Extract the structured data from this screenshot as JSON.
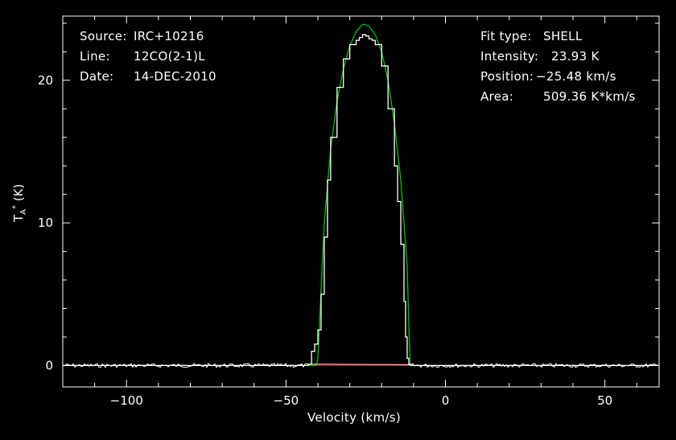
{
  "header_left": {
    "source_label": "Source:",
    "source_value": "IRC+10216",
    "line_label": "Line:",
    "line_value": "12CO(2-1)L",
    "date_label": "Date:",
    "date_value": "14-DEC-2010"
  },
  "header_right": {
    "fit_label": "Fit type:",
    "fit_value": "SHELL",
    "intensity_label": "Intensity:",
    "intensity_value": "23.93 K",
    "position_label": "Position:",
    "position_value": "−25.48 km/s",
    "area_label": "Area:",
    "area_value": "509.36 K*km/s"
  },
  "colors": {
    "background": "#000000",
    "axes": "#ffffff",
    "observed": "#ffffff",
    "fit": "#00c000",
    "baseline": "#c00000"
  },
  "chart_data": {
    "type": "line",
    "xlabel": "Velocity (km/s)",
    "ylabel_main": "T",
    "ylabel_sub": "A",
    "ylabel_sup": "*",
    "ylabel_unit": "(K)",
    "xlim": [
      -120,
      67
    ],
    "ylim": [
      -1.5,
      24.5
    ],
    "xticks": [
      -100,
      -50,
      0,
      50
    ],
    "xtick_labels": [
      "−100",
      "−50",
      "0",
      "50"
    ],
    "yticks": [
      0,
      10,
      20
    ],
    "ytick_labels": [
      "0",
      "10",
      "20"
    ],
    "series": [
      {
        "role": "observed",
        "x": [
          -120,
          -60,
          -50,
          -45,
          -43,
          -42,
          -41,
          -40,
          -39,
          -38,
          -37,
          -36,
          -34,
          -32,
          -30,
          -28,
          -27,
          -26,
          -25,
          -24,
          -23,
          -22,
          -20,
          -18,
          -16,
          -15,
          -14,
          -13,
          -12.5,
          -12,
          -11.5,
          -11,
          -5,
          0,
          67
        ],
        "y": [
          0,
          0,
          0,
          0,
          0.1,
          1.0,
          1.5,
          2.5,
          5.0,
          9.0,
          13.0,
          16.0,
          19.5,
          21.5,
          22.5,
          22.8,
          23.0,
          23.2,
          23.1,
          22.9,
          22.8,
          22.5,
          21.0,
          18.0,
          14.0,
          11.5,
          8.5,
          4.5,
          2.0,
          0.5,
          0.1,
          0,
          0,
          0,
          0
        ]
      },
      {
        "role": "fit",
        "x": [
          -120,
          -40.5,
          -40.0,
          -38,
          -36,
          -34,
          -32,
          -30,
          -28,
          -26,
          -25.48,
          -24,
          -22,
          -20,
          -18,
          -16,
          -14,
          -12,
          -11.5,
          -11,
          67
        ],
        "y": [
          0,
          0,
          0.5,
          10.0,
          15.2,
          18.5,
          20.8,
          22.4,
          23.4,
          23.9,
          23.93,
          23.8,
          23.2,
          22.0,
          20.0,
          17.0,
          13.0,
          7.0,
          3.0,
          0,
          0
        ]
      },
      {
        "role": "baseline",
        "x": [
          -40.5,
          -11.5
        ],
        "y": [
          0,
          0
        ]
      }
    ]
  }
}
